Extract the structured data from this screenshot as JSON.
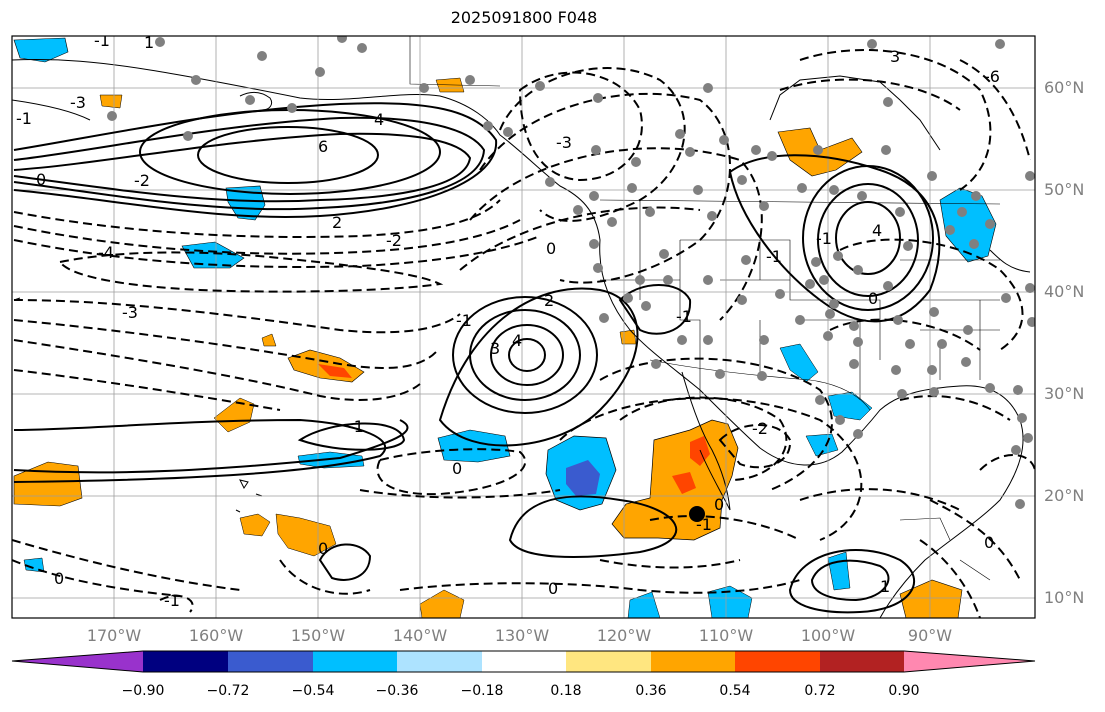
{
  "title": "2025091800 F048",
  "latitude_labels": [
    "60°N",
    "50°N",
    "40°N",
    "30°N",
    "20°N",
    "10°N"
  ],
  "longitude_labels": [
    "170°W",
    "160°W",
    "150°W",
    "140°W",
    "130°W",
    "120°W",
    "110°W",
    "100°W",
    "90°W"
  ],
  "colorbar": {
    "ticks": [
      "−0.90",
      "−0.72",
      "−0.54",
      "−0.36",
      "−0.18",
      "0.18",
      "0.36",
      "0.54",
      "0.72",
      "0.90"
    ],
    "colors": [
      "#9932cc",
      "#000080",
      "#3a5bcf",
      "#00bfff",
      "#ade3ff",
      "#ffffff",
      "#ffe680",
      "#ffa500",
      "#ff4500",
      "#b22222",
      "#ff88b0"
    ]
  },
  "contour_labels": [
    "-3",
    "4",
    "6",
    "0",
    "-2",
    "2",
    "-2",
    "-4",
    "-3",
    "0",
    "2",
    "3",
    "4",
    "-1",
    "0",
    "-3",
    "-1",
    "0",
    "3",
    "-6",
    "0",
    "4",
    "-1",
    "-2",
    "0",
    "-1",
    "0",
    "1",
    "-1",
    "0",
    "-1",
    "0",
    "-1",
    "1",
    "-1",
    "-1"
  ],
  "marker_colors": {
    "dot": "#808080",
    "center_dot": "#000000"
  }
}
